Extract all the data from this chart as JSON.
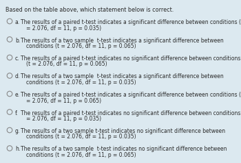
{
  "title": "Based on the table above, which statement below is correct.",
  "bg_color": "#dce9f0",
  "text_color": "#2a2a2a",
  "font_size": 5.5,
  "title_font_size": 5.8,
  "options": [
    {
      "label": "a.",
      "line1": "The results of a paired t-test indicates a significant difference between conditions (t",
      "line2": "= 2.076, df = 11, p = 0.035)"
    },
    {
      "label": "b.",
      "line1": "The results of a two sample  t-test indicates a significant difference between",
      "line2": "conditions (t = 2.076, df = 11, p = 0.065)"
    },
    {
      "label": "c.",
      "line1": "The results of a paired t-test indicates no significant difference between conditions",
      "line2": "(t = 2.076, df = 11, p = 0.065)"
    },
    {
      "label": "d.",
      "line1": "The results of a two sample  t-test indicates a significant difference between",
      "line2": "conditions (t = 2.076, df = 11, p = 0.035)"
    },
    {
      "label": "e.",
      "line1": "The results of a paired t-test indicates a significant difference between conditions (t",
      "line2": "= 2.076, df = 11, p = 0.065)"
    },
    {
      "label": "f.",
      "line1": "The results of a paired t-test indicates no significant difference between conditions (t",
      "line2": "= 2.076, df = 11, p = 0.035)"
    },
    {
      "label": "g.",
      "line1": "The results of a two sample t-test indicates no significant difference between",
      "line2": "conditions (t = 2.076, df = 11, p = 0.035)"
    },
    {
      "label": "h.",
      "line1": "The results of a two sample  t-test indicates no significant difference between",
      "line2": "conditions (t = 2.076, df = 11, p = 0.065)"
    }
  ]
}
